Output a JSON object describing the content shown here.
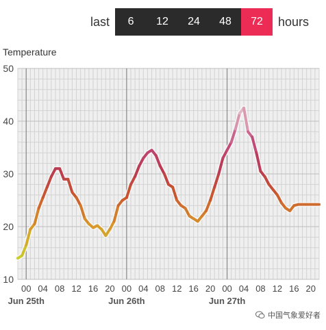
{
  "range_selector": {
    "prefix": "last",
    "suffix": "hours",
    "options": [
      "6",
      "12",
      "24",
      "48",
      "72"
    ],
    "selected": "72",
    "active_color": "#ec2c54"
  },
  "watermark": {
    "text": "中国气象爱好者"
  },
  "chart_data": {
    "type": "line",
    "title": "Temperature",
    "xlabel": "",
    "ylabel": "",
    "ylim": [
      10,
      50
    ],
    "yticks": [
      10,
      20,
      30,
      40,
      50
    ],
    "xlim": [
      -2,
      70
    ],
    "x_tick_labels": [
      {
        "x": 0,
        "label": "00"
      },
      {
        "x": 4,
        "label": "04"
      },
      {
        "x": 8,
        "label": "08"
      },
      {
        "x": 12,
        "label": "12"
      },
      {
        "x": 16,
        "label": "16"
      },
      {
        "x": 20,
        "label": "20"
      },
      {
        "x": 24,
        "label": "00"
      },
      {
        "x": 28,
        "label": "04"
      },
      {
        "x": 32,
        "label": "08"
      },
      {
        "x": 36,
        "label": "12"
      },
      {
        "x": 40,
        "label": "16"
      },
      {
        "x": 44,
        "label": "20"
      },
      {
        "x": 48,
        "label": "00"
      },
      {
        "x": 52,
        "label": "04"
      },
      {
        "x": 56,
        "label": "08"
      },
      {
        "x": 60,
        "label": "12"
      },
      {
        "x": 64,
        "label": "16"
      },
      {
        "x": 68,
        "label": "20"
      }
    ],
    "day_labels": [
      {
        "x": 0,
        "label": "Jun 25th"
      },
      {
        "x": 24,
        "label": "Jun 26th"
      },
      {
        "x": 48,
        "label": "Jun 27th"
      }
    ],
    "grid": true,
    "series": [
      {
        "x": [
          -2,
          -1,
          0,
          1,
          2,
          3,
          4,
          5,
          6,
          7,
          8,
          9,
          10,
          11,
          12,
          13,
          14,
          15,
          16,
          17,
          18,
          19,
          20,
          21,
          22,
          23,
          24,
          25,
          26,
          27,
          28,
          29,
          30,
          31,
          32,
          33,
          34,
          35,
          36,
          37,
          38,
          39,
          40,
          41,
          42,
          43,
          44,
          45,
          46,
          47,
          48,
          49,
          50,
          51,
          52,
          53,
          54,
          55,
          56,
          57,
          58,
          59,
          60,
          61,
          62,
          63,
          64,
          65,
          66,
          67,
          68,
          69,
          70
        ],
        "values": [
          14.0,
          14.5,
          16.5,
          19.5,
          20.5,
          23.5,
          25.5,
          27.5,
          29.5,
          31.0,
          31.0,
          29.0,
          29.0,
          26.5,
          25.5,
          24.0,
          21.5,
          20.5,
          19.8,
          20.2,
          19.5,
          18.3,
          19.5,
          21.0,
          24.0,
          25.0,
          25.5,
          28.0,
          29.5,
          31.5,
          33.0,
          34.0,
          34.5,
          33.5,
          31.5,
          30.0,
          28.0,
          27.5,
          25.0,
          24.0,
          23.5,
          22.0,
          21.5,
          21.0,
          22.0,
          23.0,
          25.0,
          27.5,
          30.0,
          33.0,
          34.5,
          36.0,
          38.5,
          41.5,
          42.5,
          38.0,
          37.0,
          34.0,
          30.5,
          29.5,
          28.0,
          27.0,
          26.0,
          24.5,
          23.5,
          23.0,
          24.0,
          24.2,
          24.2,
          24.2,
          24.2,
          24.2,
          24.2
        ]
      }
    ],
    "color_scale": [
      {
        "t": 14,
        "color": "#c9cf2f"
      },
      {
        "t": 20,
        "color": "#d89a2c"
      },
      {
        "t": 26,
        "color": "#c9572f"
      },
      {
        "t": 31,
        "color": "#b93a52"
      },
      {
        "t": 36,
        "color": "#c24e7e"
      },
      {
        "t": 42,
        "color": "#e3b9c6"
      }
    ]
  }
}
